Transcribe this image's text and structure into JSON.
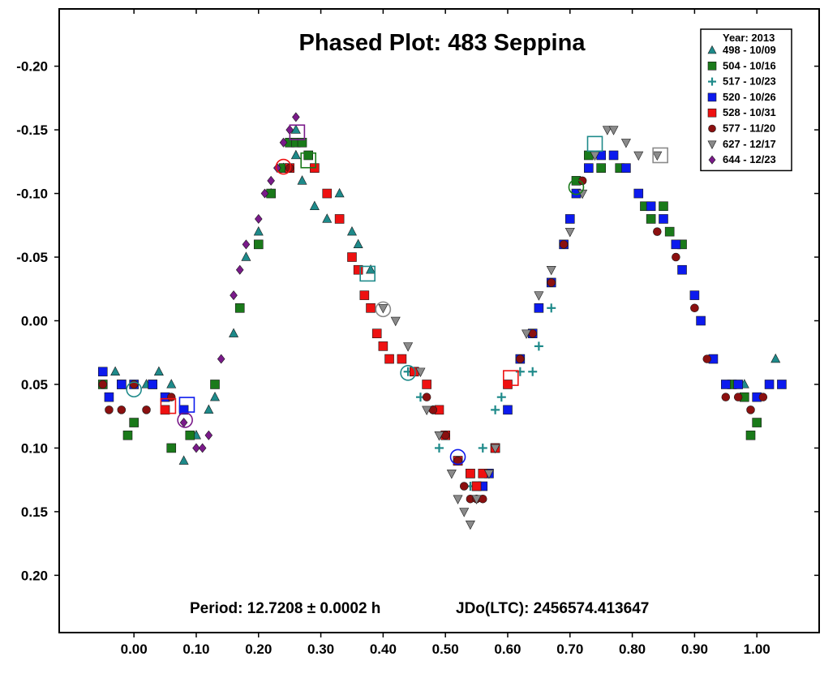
{
  "chart_data": {
    "type": "scatter",
    "title": "Phased Plot: 483 Seppina",
    "xlabel": "",
    "ylabel": "",
    "xlim": [
      -0.12,
      1.1
    ],
    "ylim": [
      0.245,
      -0.245
    ],
    "y_inverted": true,
    "grid": false,
    "legend_position": "top-right",
    "legend_title": "Year: 2013",
    "x_ticks": [
      "0.00",
      "0.10",
      "0.20",
      "0.30",
      "0.40",
      "0.50",
      "0.60",
      "0.70",
      "0.80",
      "0.90",
      "1.00"
    ],
    "y_ticks": [
      "-0.20",
      "-0.15",
      "-0.10",
      "-0.05",
      "0.00",
      "0.05",
      "0.10",
      "0.15",
      "0.20"
    ],
    "annotations": {
      "period": "Period: 12.7208 ± 0.0002 h",
      "epoch": "JDo(LTC): 2456574.413647"
    },
    "series": [
      {
        "name": "498 - 10/09",
        "marker": "triangle-up",
        "color": "#1e8a8a",
        "points": [
          [
            -0.03,
            0.04
          ],
          [
            0.02,
            0.05
          ],
          [
            0.04,
            0.04
          ],
          [
            0.06,
            0.05
          ],
          [
            0.08,
            0.11
          ],
          [
            0.1,
            0.09
          ],
          [
            0.12,
            0.07
          ],
          [
            0.13,
            0.06
          ],
          [
            0.16,
            0.01
          ],
          [
            0.18,
            -0.05
          ],
          [
            0.2,
            -0.07
          ],
          [
            0.22,
            -0.1
          ],
          [
            0.24,
            -0.12
          ],
          [
            0.26,
            -0.13
          ],
          [
            0.27,
            -0.11
          ],
          [
            0.29,
            -0.09
          ],
          [
            0.31,
            -0.08
          ],
          [
            0.33,
            -0.1
          ],
          [
            0.35,
            -0.07
          ],
          [
            0.36,
            -0.06
          ],
          [
            0.38,
            -0.04
          ],
          [
            0.26,
            -0.15
          ],
          [
            1.03,
            0.03
          ],
          [
            0.98,
            0.05
          ]
        ]
      },
      {
        "name": "504 - 10/16",
        "marker": "square",
        "color": "#1a7a1a",
        "points": [
          [
            -0.05,
            0.05
          ],
          [
            -0.02,
            0.05
          ],
          [
            -0.01,
            0.09
          ],
          [
            0.0,
            0.08
          ],
          [
            0.03,
            0.05
          ],
          [
            0.06,
            0.1
          ],
          [
            0.09,
            0.09
          ],
          [
            0.13,
            0.05
          ],
          [
            0.17,
            -0.01
          ],
          [
            0.2,
            -0.06
          ],
          [
            0.22,
            -0.1
          ],
          [
            0.24,
            -0.12
          ],
          [
            0.25,
            -0.14
          ],
          [
            0.26,
            -0.14
          ],
          [
            0.27,
            -0.14
          ],
          [
            0.28,
            -0.13
          ],
          [
            0.71,
            -0.11
          ],
          [
            0.73,
            -0.13
          ],
          [
            0.75,
            -0.12
          ],
          [
            0.78,
            -0.12
          ],
          [
            0.82,
            -0.09
          ],
          [
            0.83,
            -0.08
          ],
          [
            0.85,
            -0.09
          ],
          [
            0.86,
            -0.07
          ],
          [
            0.88,
            -0.06
          ],
          [
            0.96,
            0.05
          ],
          [
            0.98,
            0.06
          ],
          [
            1.0,
            0.08
          ],
          [
            0.99,
            0.09
          ]
        ]
      },
      {
        "name": "517 - 10/23",
        "marker": "plus",
        "color": "#1e8a8a",
        "points": [
          [
            0.44,
            0.04
          ],
          [
            0.46,
            0.06
          ],
          [
            0.48,
            0.07
          ],
          [
            0.49,
            0.1
          ],
          [
            0.52,
            0.11
          ],
          [
            0.54,
            0.13
          ],
          [
            0.56,
            0.1
          ],
          [
            0.58,
            0.07
          ],
          [
            0.59,
            0.06
          ],
          [
            0.62,
            0.04
          ],
          [
            0.64,
            0.04
          ],
          [
            0.65,
            0.02
          ],
          [
            0.67,
            -0.01
          ]
        ]
      },
      {
        "name": "520 - 10/26",
        "marker": "square",
        "color": "#0c1aee",
        "points": [
          [
            -0.05,
            0.04
          ],
          [
            -0.04,
            0.06
          ],
          [
            -0.02,
            0.05
          ],
          [
            0.0,
            0.05
          ],
          [
            0.03,
            0.05
          ],
          [
            0.05,
            0.06
          ],
          [
            0.08,
            0.07
          ],
          [
            0.52,
            0.11
          ],
          [
            0.54,
            0.12
          ],
          [
            0.55,
            0.13
          ],
          [
            0.56,
            0.13
          ],
          [
            0.57,
            0.12
          ],
          [
            0.58,
            0.1
          ],
          [
            0.6,
            0.07
          ],
          [
            0.62,
            0.03
          ],
          [
            0.64,
            0.01
          ],
          [
            0.65,
            -0.01
          ],
          [
            0.67,
            -0.03
          ],
          [
            0.69,
            -0.06
          ],
          [
            0.7,
            -0.08
          ],
          [
            0.71,
            -0.1
          ],
          [
            0.73,
            -0.12
          ],
          [
            0.75,
            -0.13
          ],
          [
            0.77,
            -0.13
          ],
          [
            0.79,
            -0.12
          ],
          [
            0.81,
            -0.1
          ],
          [
            0.83,
            -0.09
          ],
          [
            0.85,
            -0.08
          ],
          [
            0.87,
            -0.06
          ],
          [
            0.88,
            -0.04
          ],
          [
            0.9,
            -0.02
          ],
          [
            0.91,
            0.0
          ],
          [
            0.93,
            0.03
          ],
          [
            0.95,
            0.05
          ],
          [
            0.97,
            0.05
          ],
          [
            1.0,
            0.06
          ],
          [
            1.02,
            0.05
          ],
          [
            1.04,
            0.05
          ]
        ]
      },
      {
        "name": "528 - 10/31",
        "marker": "square",
        "color": "#ee1111",
        "points": [
          [
            0.05,
            0.07
          ],
          [
            0.25,
            -0.12
          ],
          [
            0.29,
            -0.12
          ],
          [
            0.31,
            -0.1
          ],
          [
            0.33,
            -0.08
          ],
          [
            0.35,
            -0.05
          ],
          [
            0.36,
            -0.04
          ],
          [
            0.37,
            -0.02
          ],
          [
            0.38,
            -0.01
          ],
          [
            0.39,
            0.01
          ],
          [
            0.4,
            0.02
          ],
          [
            0.41,
            0.03
          ],
          [
            0.43,
            0.03
          ],
          [
            0.45,
            0.04
          ],
          [
            0.47,
            0.05
          ],
          [
            0.49,
            0.07
          ],
          [
            0.5,
            0.09
          ],
          [
            0.52,
            0.11
          ],
          [
            0.54,
            0.12
          ],
          [
            0.55,
            0.13
          ],
          [
            0.56,
            0.12
          ],
          [
            0.58,
            0.1
          ],
          [
            0.6,
            0.05
          ]
        ]
      },
      {
        "name": "577 - 11/20",
        "marker": "circle",
        "color": "#8b1010",
        "points": [
          [
            -0.05,
            0.05
          ],
          [
            -0.04,
            0.07
          ],
          [
            -0.02,
            0.07
          ],
          [
            0.0,
            0.05
          ],
          [
            0.02,
            0.07
          ],
          [
            0.06,
            0.06
          ],
          [
            0.25,
            -0.12
          ],
          [
            0.47,
            0.06
          ],
          [
            0.48,
            0.07
          ],
          [
            0.5,
            0.09
          ],
          [
            0.52,
            0.11
          ],
          [
            0.53,
            0.13
          ],
          [
            0.54,
            0.14
          ],
          [
            0.55,
            0.14
          ],
          [
            0.56,
            0.14
          ],
          [
            0.62,
            0.03
          ],
          [
            0.64,
            0.01
          ],
          [
            0.67,
            -0.03
          ],
          [
            0.69,
            -0.06
          ],
          [
            0.72,
            -0.11
          ],
          [
            0.84,
            -0.07
          ],
          [
            0.87,
            -0.05
          ],
          [
            0.9,
            -0.01
          ],
          [
            0.92,
            0.03
          ],
          [
            0.95,
            0.06
          ],
          [
            0.97,
            0.06
          ],
          [
            0.99,
            0.07
          ],
          [
            1.01,
            0.06
          ]
        ]
      },
      {
        "name": "627 - 12/17",
        "marker": "triangle-down",
        "color": "#8a8a8a",
        "points": [
          [
            0.4,
            -0.01
          ],
          [
            0.42,
            0.0
          ],
          [
            0.44,
            0.02
          ],
          [
            0.46,
            0.04
          ],
          [
            0.47,
            0.07
          ],
          [
            0.49,
            0.09
          ],
          [
            0.51,
            0.12
          ],
          [
            0.52,
            0.14
          ],
          [
            0.53,
            0.15
          ],
          [
            0.54,
            0.16
          ],
          [
            0.55,
            0.14
          ],
          [
            0.57,
            0.12
          ],
          [
            0.58,
            0.1
          ],
          [
            0.63,
            0.01
          ],
          [
            0.65,
            -0.02
          ],
          [
            0.67,
            -0.04
          ],
          [
            0.7,
            -0.07
          ],
          [
            0.72,
            -0.1
          ],
          [
            0.74,
            -0.13
          ],
          [
            0.76,
            -0.15
          ],
          [
            0.77,
            -0.15
          ],
          [
            0.79,
            -0.14
          ],
          [
            0.81,
            -0.13
          ],
          [
            0.84,
            -0.13
          ]
        ]
      },
      {
        "name": "644 - 12/23",
        "marker": "diamond",
        "color": "#7a1a8a",
        "points": [
          [
            0.08,
            0.08
          ],
          [
            0.1,
            0.1
          ],
          [
            0.11,
            0.1
          ],
          [
            0.12,
            0.09
          ],
          [
            0.14,
            0.03
          ],
          [
            0.16,
            -0.02
          ],
          [
            0.17,
            -0.04
          ],
          [
            0.18,
            -0.06
          ],
          [
            0.2,
            -0.08
          ],
          [
            0.21,
            -0.1
          ],
          [
            0.22,
            -0.11
          ],
          [
            0.23,
            -0.12
          ],
          [
            0.24,
            -0.14
          ],
          [
            0.25,
            -0.15
          ],
          [
            0.26,
            -0.16
          ]
        ]
      }
    ],
    "reference_markers": [
      {
        "x": 0.0,
        "y": 0.054,
        "marker": "circle",
        "color": "#1e8a8a"
      },
      {
        "x": 0.055,
        "y": 0.067,
        "marker": "square",
        "color": "#ee1111"
      },
      {
        "x": 0.082,
        "y": 0.078,
        "marker": "circle",
        "color": "#7a1a8a"
      },
      {
        "x": 0.085,
        "y": 0.066,
        "marker": "square",
        "color": "#0c1aee"
      },
      {
        "x": 0.24,
        "y": -0.121,
        "marker": "circle",
        "color": "#ee1111"
      },
      {
        "x": 0.262,
        "y": -0.148,
        "marker": "square",
        "color": "#7a1a8a"
      },
      {
        "x": 0.28,
        "y": -0.126,
        "marker": "square",
        "color": "#1a7a1a"
      },
      {
        "x": 0.375,
        "y": -0.037,
        "marker": "square",
        "color": "#1e8a8a"
      },
      {
        "x": 0.4,
        "y": -0.009,
        "marker": "circle",
        "color": "#8a8a8a"
      },
      {
        "x": 0.44,
        "y": 0.041,
        "marker": "circle",
        "color": "#1e8a8a"
      },
      {
        "x": 0.52,
        "y": 0.107,
        "marker": "circle",
        "color": "#0c1aee"
      },
      {
        "x": 0.605,
        "y": 0.045,
        "marker": "square",
        "color": "#ee1111"
      },
      {
        "x": 0.71,
        "y": -0.105,
        "marker": "circle",
        "color": "#1a7a1a"
      },
      {
        "x": 0.74,
        "y": -0.139,
        "marker": "square",
        "color": "#1e8a8a"
      },
      {
        "x": 0.845,
        "y": -0.13,
        "marker": "square",
        "color": "#8a8a8a"
      }
    ]
  }
}
